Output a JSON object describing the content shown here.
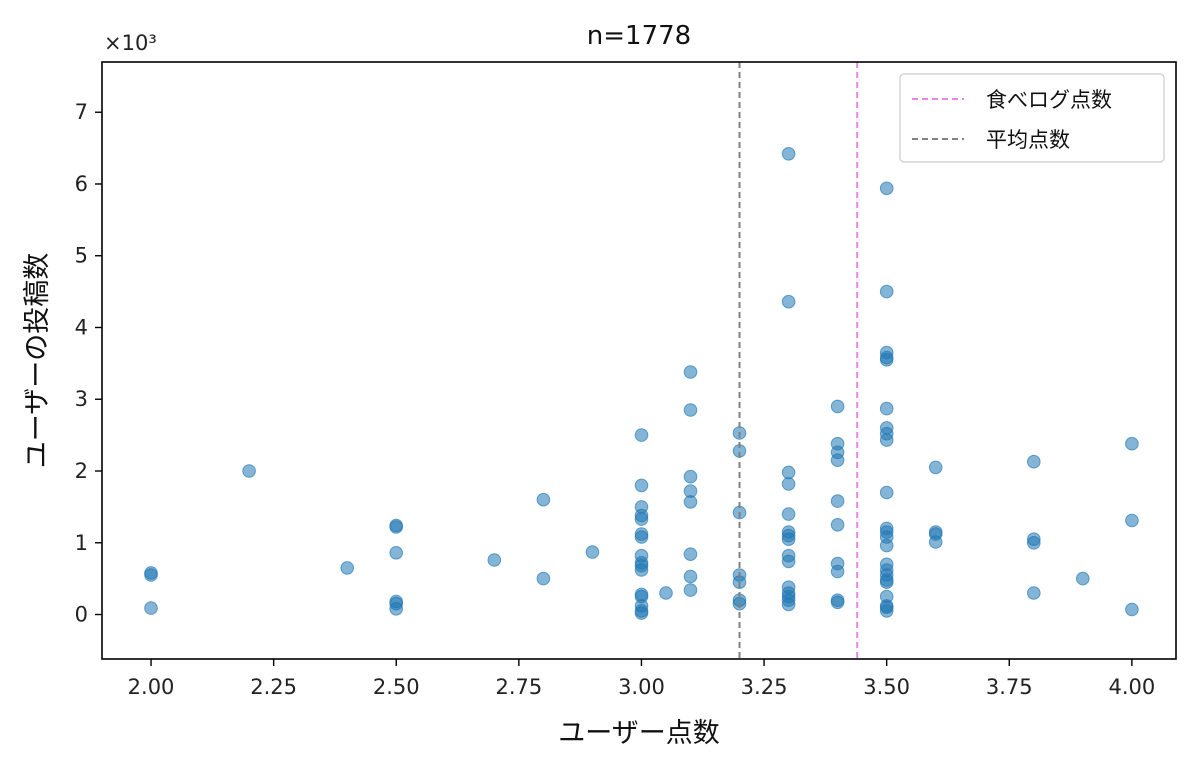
{
  "chart_data": {
    "type": "scatter",
    "title": "n=1778",
    "xlabel": "ユーザー点数",
    "ylabel": "ユーザーの投稿数",
    "y_multiplier_label": "×10³",
    "xlim": [
      1.9,
      4.09
    ],
    "ylim": [
      -0.62,
      7.7
    ],
    "x_ticks": [
      2.0,
      2.25,
      2.5,
      2.75,
      3.0,
      3.25,
      3.5,
      3.75,
      4.0
    ],
    "x_tick_labels": [
      "2.00",
      "2.25",
      "2.50",
      "2.75",
      "3.00",
      "3.25",
      "3.50",
      "3.75",
      "4.00"
    ],
    "y_ticks": [
      0,
      1,
      2,
      3,
      4,
      5,
      6,
      7
    ],
    "y_tick_labels": [
      "0",
      "1",
      "2",
      "3",
      "4",
      "5",
      "6",
      "7"
    ],
    "grid": false,
    "legend_position": "top-right",
    "point_color": "#1f77b4",
    "vlines": [
      {
        "name": "食べログ点数",
        "x": 3.44,
        "color": "#ee82ee",
        "style": "dashed"
      },
      {
        "name": "平均点数",
        "x": 3.2,
        "color": "#808080",
        "style": "dashed"
      }
    ],
    "series": [
      {
        "points": [
          [
            2.0,
            0.58
          ],
          [
            2.0,
            0.55
          ],
          [
            2.0,
            0.09
          ],
          [
            2.2,
            2.0
          ],
          [
            2.4,
            0.65
          ],
          [
            2.5,
            1.24
          ],
          [
            2.5,
            1.22
          ],
          [
            2.5,
            0.86
          ],
          [
            2.5,
            0.18
          ],
          [
            2.5,
            0.15
          ],
          [
            2.5,
            0.08
          ],
          [
            2.7,
            0.76
          ],
          [
            2.8,
            1.6
          ],
          [
            2.8,
            0.5
          ],
          [
            2.9,
            0.87
          ],
          [
            3.0,
            2.5
          ],
          [
            3.0,
            1.8
          ],
          [
            3.0,
            1.5
          ],
          [
            3.0,
            1.38
          ],
          [
            3.0,
            1.33
          ],
          [
            3.0,
            1.12
          ],
          [
            3.0,
            1.08
          ],
          [
            3.0,
            0.82
          ],
          [
            3.0,
            0.72
          ],
          [
            3.0,
            0.68
          ],
          [
            3.0,
            0.62
          ],
          [
            3.0,
            0.28
          ],
          [
            3.0,
            0.25
          ],
          [
            3.0,
            0.12
          ],
          [
            3.0,
            0.05
          ],
          [
            3.0,
            0.02
          ],
          [
            3.05,
            0.3
          ],
          [
            3.1,
            3.38
          ],
          [
            3.1,
            2.85
          ],
          [
            3.1,
            1.92
          ],
          [
            3.1,
            1.72
          ],
          [
            3.1,
            1.57
          ],
          [
            3.1,
            0.84
          ],
          [
            3.1,
            0.53
          ],
          [
            3.1,
            0.34
          ],
          [
            3.2,
            2.53
          ],
          [
            3.2,
            2.28
          ],
          [
            3.2,
            1.42
          ],
          [
            3.2,
            0.55
          ],
          [
            3.2,
            0.45
          ],
          [
            3.2,
            0.2
          ],
          [
            3.2,
            0.15
          ],
          [
            3.3,
            6.42
          ],
          [
            3.3,
            4.36
          ],
          [
            3.3,
            1.98
          ],
          [
            3.3,
            1.82
          ],
          [
            3.3,
            1.4
          ],
          [
            3.3,
            1.15
          ],
          [
            3.3,
            1.1
          ],
          [
            3.3,
            1.05
          ],
          [
            3.3,
            0.82
          ],
          [
            3.3,
            0.74
          ],
          [
            3.3,
            0.38
          ],
          [
            3.3,
            0.3
          ],
          [
            3.3,
            0.25
          ],
          [
            3.3,
            0.2
          ],
          [
            3.3,
            0.14
          ],
          [
            3.4,
            2.9
          ],
          [
            3.4,
            2.38
          ],
          [
            3.4,
            2.26
          ],
          [
            3.4,
            2.15
          ],
          [
            3.4,
            1.58
          ],
          [
            3.4,
            1.25
          ],
          [
            3.4,
            0.71
          ],
          [
            3.4,
            0.6
          ],
          [
            3.4,
            0.2
          ],
          [
            3.4,
            0.17
          ],
          [
            3.5,
            5.94
          ],
          [
            3.5,
            4.5
          ],
          [
            3.5,
            3.65
          ],
          [
            3.5,
            3.58
          ],
          [
            3.5,
            3.55
          ],
          [
            3.5,
            2.87
          ],
          [
            3.5,
            2.6
          ],
          [
            3.5,
            2.52
          ],
          [
            3.5,
            2.43
          ],
          [
            3.5,
            1.7
          ],
          [
            3.5,
            1.2
          ],
          [
            3.5,
            1.15
          ],
          [
            3.5,
            1.08
          ],
          [
            3.5,
            0.96
          ],
          [
            3.5,
            0.7
          ],
          [
            3.5,
            0.62
          ],
          [
            3.5,
            0.55
          ],
          [
            3.5,
            0.48
          ],
          [
            3.5,
            0.45
          ],
          [
            3.5,
            0.25
          ],
          [
            3.5,
            0.12
          ],
          [
            3.5,
            0.1
          ],
          [
            3.5,
            0.05
          ],
          [
            3.6,
            2.05
          ],
          [
            3.6,
            1.15
          ],
          [
            3.6,
            1.12
          ],
          [
            3.6,
            1.01
          ],
          [
            3.8,
            2.13
          ],
          [
            3.8,
            1.05
          ],
          [
            3.8,
            1.0
          ],
          [
            3.8,
            0.3
          ],
          [
            3.9,
            0.5
          ],
          [
            4.0,
            2.38
          ],
          [
            4.0,
            1.31
          ],
          [
            4.0,
            0.07
          ]
        ]
      }
    ]
  }
}
